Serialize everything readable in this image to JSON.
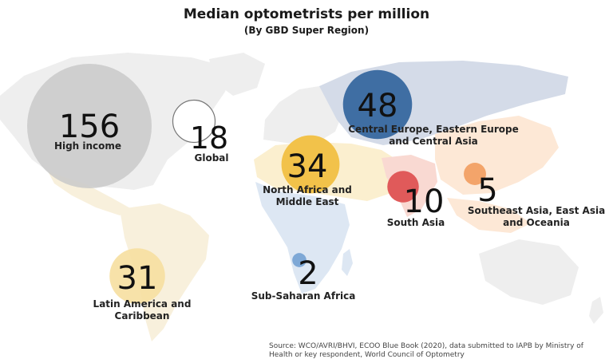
{
  "chart_data": {
    "type": "bubble-map",
    "title": "Median optometrists per million",
    "subtitle": "(By GBD Super Region)",
    "unit": "optometrists per million",
    "regions": [
      {
        "name": "High income",
        "value": 156,
        "color": "#c9c9c9"
      },
      {
        "name": "Global",
        "value": 18,
        "color": "#ffffff"
      },
      {
        "name": "Central Europe, Eastern Europe and Central Asia",
        "value": 48,
        "color": "#3f6ea3"
      },
      {
        "name": "North Africa and Middle East",
        "value": 34,
        "color": "#f2c24a"
      },
      {
        "name": "South Asia",
        "value": 10,
        "color": "#e05a5a"
      },
      {
        "name": "Southeast Asia, East Asia and Oceania",
        "value": 5,
        "color": "#f3a46a"
      },
      {
        "name": "Latin America and Caribbean",
        "value": 31,
        "color": "#f6dfa0"
      },
      {
        "name": "Sub-Saharan Africa",
        "value": 2,
        "color": "#7ea8d6"
      }
    ]
  },
  "source": "Source: WCO/AVRI/BHVI, ECOO Blue Book (2020), data submitted to IAPB by Ministry of Health or key respondent, World Council of Optometry"
}
